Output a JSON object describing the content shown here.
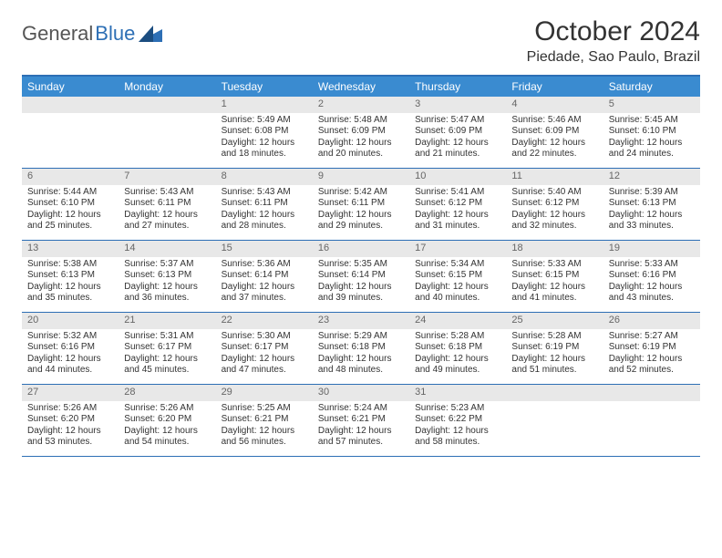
{
  "brand": {
    "part1": "General",
    "part2": "Blue"
  },
  "title": "October 2024",
  "location": "Piedade, Sao Paulo, Brazil",
  "colors": {
    "header_bg": "#3a8bd0",
    "border": "#2d6fb5",
    "daynum_bg": "#e8e8e8",
    "text": "#333333"
  },
  "daynames": [
    "Sunday",
    "Monday",
    "Tuesday",
    "Wednesday",
    "Thursday",
    "Friday",
    "Saturday"
  ],
  "weeks": [
    [
      null,
      null,
      {
        "n": "1",
        "sr": "5:49 AM",
        "ss": "6:08 PM",
        "dl": "12 hours and 18 minutes."
      },
      {
        "n": "2",
        "sr": "5:48 AM",
        "ss": "6:09 PM",
        "dl": "12 hours and 20 minutes."
      },
      {
        "n": "3",
        "sr": "5:47 AM",
        "ss": "6:09 PM",
        "dl": "12 hours and 21 minutes."
      },
      {
        "n": "4",
        "sr": "5:46 AM",
        "ss": "6:09 PM",
        "dl": "12 hours and 22 minutes."
      },
      {
        "n": "5",
        "sr": "5:45 AM",
        "ss": "6:10 PM",
        "dl": "12 hours and 24 minutes."
      }
    ],
    [
      {
        "n": "6",
        "sr": "5:44 AM",
        "ss": "6:10 PM",
        "dl": "12 hours and 25 minutes."
      },
      {
        "n": "7",
        "sr": "5:43 AM",
        "ss": "6:11 PM",
        "dl": "12 hours and 27 minutes."
      },
      {
        "n": "8",
        "sr": "5:43 AM",
        "ss": "6:11 PM",
        "dl": "12 hours and 28 minutes."
      },
      {
        "n": "9",
        "sr": "5:42 AM",
        "ss": "6:11 PM",
        "dl": "12 hours and 29 minutes."
      },
      {
        "n": "10",
        "sr": "5:41 AM",
        "ss": "6:12 PM",
        "dl": "12 hours and 31 minutes."
      },
      {
        "n": "11",
        "sr": "5:40 AM",
        "ss": "6:12 PM",
        "dl": "12 hours and 32 minutes."
      },
      {
        "n": "12",
        "sr": "5:39 AM",
        "ss": "6:13 PM",
        "dl": "12 hours and 33 minutes."
      }
    ],
    [
      {
        "n": "13",
        "sr": "5:38 AM",
        "ss": "6:13 PM",
        "dl": "12 hours and 35 minutes."
      },
      {
        "n": "14",
        "sr": "5:37 AM",
        "ss": "6:13 PM",
        "dl": "12 hours and 36 minutes."
      },
      {
        "n": "15",
        "sr": "5:36 AM",
        "ss": "6:14 PM",
        "dl": "12 hours and 37 minutes."
      },
      {
        "n": "16",
        "sr": "5:35 AM",
        "ss": "6:14 PM",
        "dl": "12 hours and 39 minutes."
      },
      {
        "n": "17",
        "sr": "5:34 AM",
        "ss": "6:15 PM",
        "dl": "12 hours and 40 minutes."
      },
      {
        "n": "18",
        "sr": "5:33 AM",
        "ss": "6:15 PM",
        "dl": "12 hours and 41 minutes."
      },
      {
        "n": "19",
        "sr": "5:33 AM",
        "ss": "6:16 PM",
        "dl": "12 hours and 43 minutes."
      }
    ],
    [
      {
        "n": "20",
        "sr": "5:32 AM",
        "ss": "6:16 PM",
        "dl": "12 hours and 44 minutes."
      },
      {
        "n": "21",
        "sr": "5:31 AM",
        "ss": "6:17 PM",
        "dl": "12 hours and 45 minutes."
      },
      {
        "n": "22",
        "sr": "5:30 AM",
        "ss": "6:17 PM",
        "dl": "12 hours and 47 minutes."
      },
      {
        "n": "23",
        "sr": "5:29 AM",
        "ss": "6:18 PM",
        "dl": "12 hours and 48 minutes."
      },
      {
        "n": "24",
        "sr": "5:28 AM",
        "ss": "6:18 PM",
        "dl": "12 hours and 49 minutes."
      },
      {
        "n": "25",
        "sr": "5:28 AM",
        "ss": "6:19 PM",
        "dl": "12 hours and 51 minutes."
      },
      {
        "n": "26",
        "sr": "5:27 AM",
        "ss": "6:19 PM",
        "dl": "12 hours and 52 minutes."
      }
    ],
    [
      {
        "n": "27",
        "sr": "5:26 AM",
        "ss": "6:20 PM",
        "dl": "12 hours and 53 minutes."
      },
      {
        "n": "28",
        "sr": "5:26 AM",
        "ss": "6:20 PM",
        "dl": "12 hours and 54 minutes."
      },
      {
        "n": "29",
        "sr": "5:25 AM",
        "ss": "6:21 PM",
        "dl": "12 hours and 56 minutes."
      },
      {
        "n": "30",
        "sr": "5:24 AM",
        "ss": "6:21 PM",
        "dl": "12 hours and 57 minutes."
      },
      {
        "n": "31",
        "sr": "5:23 AM",
        "ss": "6:22 PM",
        "dl": "12 hours and 58 minutes."
      },
      null,
      null
    ]
  ],
  "labels": {
    "sunrise": "Sunrise:",
    "sunset": "Sunset:",
    "daylight": "Daylight:"
  }
}
